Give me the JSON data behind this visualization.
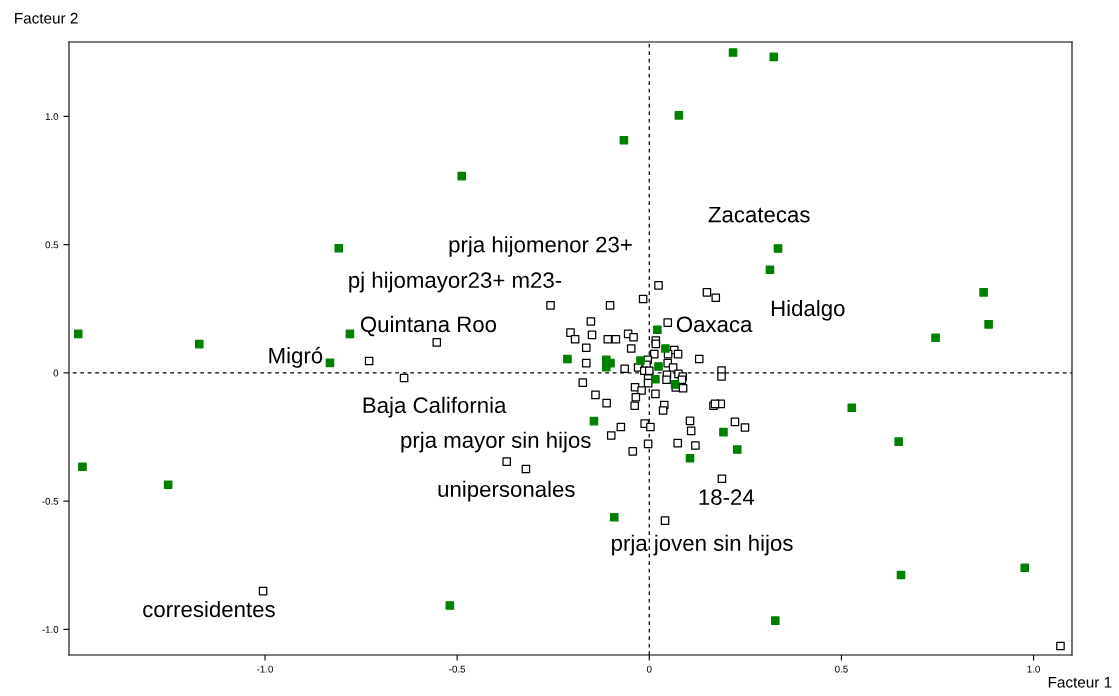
{
  "chart_data": {
    "type": "scatter",
    "xlabel": "Facteur 1",
    "ylabel": "Facteur 2",
    "xlim": [
      -1.51,
      1.1
    ],
    "ylim": [
      -1.1,
      1.29
    ],
    "xticks": [
      {
        "value": -1.0,
        "label": "-1.0"
      },
      {
        "value": -0.5,
        "label": "-0.5"
      },
      0,
      {
        "value": 0.5,
        "label": "0.5"
      },
      {
        "value": 1.0,
        "label": "1.0"
      }
    ],
    "yticks": [
      {
        "value": -1.0,
        "label": "-1.0"
      },
      {
        "value": -0.5,
        "label": "-0.5"
      },
      0,
      {
        "value": 0.5,
        "label": "0.5"
      },
      {
        "value": 1.0,
        "label": "1.0"
      }
    ],
    "grid": false,
    "legend": false,
    "marker": "square",
    "ref_lines": [
      {
        "axis": "x",
        "value": 0,
        "color": "#000000",
        "line_style": "dashed"
      },
      {
        "axis": "y",
        "value": 0,
        "color": "#000000",
        "line_style": "dashed"
      }
    ],
    "series": [
      {
        "color": "#ffffff",
        "x": [
          0.024,
          0.15,
          0.173,
          -0.016,
          -0.257,
          -0.102,
          0.048,
          -0.152,
          -0.205,
          -0.149,
          -0.193,
          -0.108,
          -0.087,
          -0.055,
          -0.041,
          -0.047,
          -0.164,
          0.017,
          0.017,
          0.013,
          0.065,
          0.075,
          0.049,
          0.13,
          -0.164,
          -0.064,
          -0.029,
          -0.004,
          -0.007,
          -0.013,
          0.0,
          0.048,
          0.062,
          0.046,
          0.076,
          0.087,
          0.085,
          0.188,
          0.188,
          -0.003,
          -0.003,
          0.045,
          0.069,
          0.088,
          -0.173,
          -0.037,
          -0.02,
          -0.035,
          0.016,
          -0.14,
          -0.111,
          -0.038,
          0.039,
          0.036,
          0.167,
          0.186,
          0.171,
          0.106,
          0.223,
          0.249,
          0.109,
          -0.012,
          0.003,
          -0.074,
          -0.099,
          0.074,
          0.12,
          -0.003,
          -0.043,
          -0.553,
          -0.729,
          -0.638,
          -0.371,
          -0.321,
          -1.005,
          0.189,
          0.041,
          1.07
        ],
        "values": [
          0.341,
          0.314,
          0.293,
          0.288,
          0.263,
          0.263,
          0.196,
          0.2,
          0.157,
          0.148,
          0.131,
          0.131,
          0.131,
          0.152,
          0.139,
          0.095,
          0.098,
          0.126,
          0.113,
          0.073,
          0.089,
          0.073,
          0.073,
          0.054,
          0.038,
          0.016,
          0.021,
          0.051,
          0.031,
          0.008,
          0.008,
          0.038,
          0.021,
          -0.008,
          -0.004,
          -0.014,
          -0.027,
          0.009,
          -0.014,
          -0.022,
          -0.04,
          -0.027,
          -0.057,
          -0.06,
          -0.038,
          -0.056,
          -0.069,
          -0.095,
          -0.082,
          -0.086,
          -0.118,
          -0.128,
          -0.125,
          -0.147,
          -0.128,
          -0.121,
          -0.121,
          -0.187,
          -0.191,
          -0.213,
          -0.226,
          -0.198,
          -0.211,
          -0.211,
          -0.244,
          -0.274,
          -0.283,
          -0.277,
          -0.306,
          0.119,
          0.046,
          -0.02,
          -0.346,
          -0.375,
          -0.851,
          -0.413,
          -0.576,
          -1.065
        ]
      },
      {
        "color": "#008000",
        "x": [
          -1.486,
          -1.171,
          -0.808,
          -0.488,
          -0.779,
          -1.475,
          -1.252,
          -0.519,
          -0.831,
          0.218,
          0.324,
          0.077,
          -0.066,
          0.335,
          0.314,
          0.87,
          0.883,
          0.745,
          0.527,
          0.649,
          0.193,
          0.229,
          0.106,
          -0.144,
          -0.091,
          0.655,
          0.977,
          0.328,
          -0.213,
          0.021,
          0.042,
          -0.112,
          -0.101,
          -0.112,
          -0.023,
          0.024,
          0.016,
          0.067
        ],
        "values": [
          0.152,
          0.112,
          0.486,
          0.767,
          0.152,
          -0.366,
          -0.436,
          -0.907,
          0.039,
          1.249,
          1.232,
          1.004,
          0.907,
          0.485,
          0.402,
          0.314,
          0.189,
          0.137,
          -0.136,
          -0.268,
          -0.231,
          -0.299,
          -0.333,
          -0.188,
          -0.563,
          -0.788,
          -0.76,
          -0.966,
          0.054,
          0.168,
          0.095,
          0.051,
          0.038,
          0.022,
          0.048,
          0.025,
          -0.025,
          -0.045
        ]
      }
    ],
    "annotations": [
      "prja hijomenor 23+",
      "pj hijomayor23+ m23-",
      "Quintana Roo",
      "Migró",
      "Baja California",
      "prja mayor sin hijos",
      "unipersonales",
      "corresidentes",
      "Zacatecas",
      "Hidalgo",
      "Oaxaca",
      "18-24",
      "prja joven sin hijos"
    ]
  }
}
